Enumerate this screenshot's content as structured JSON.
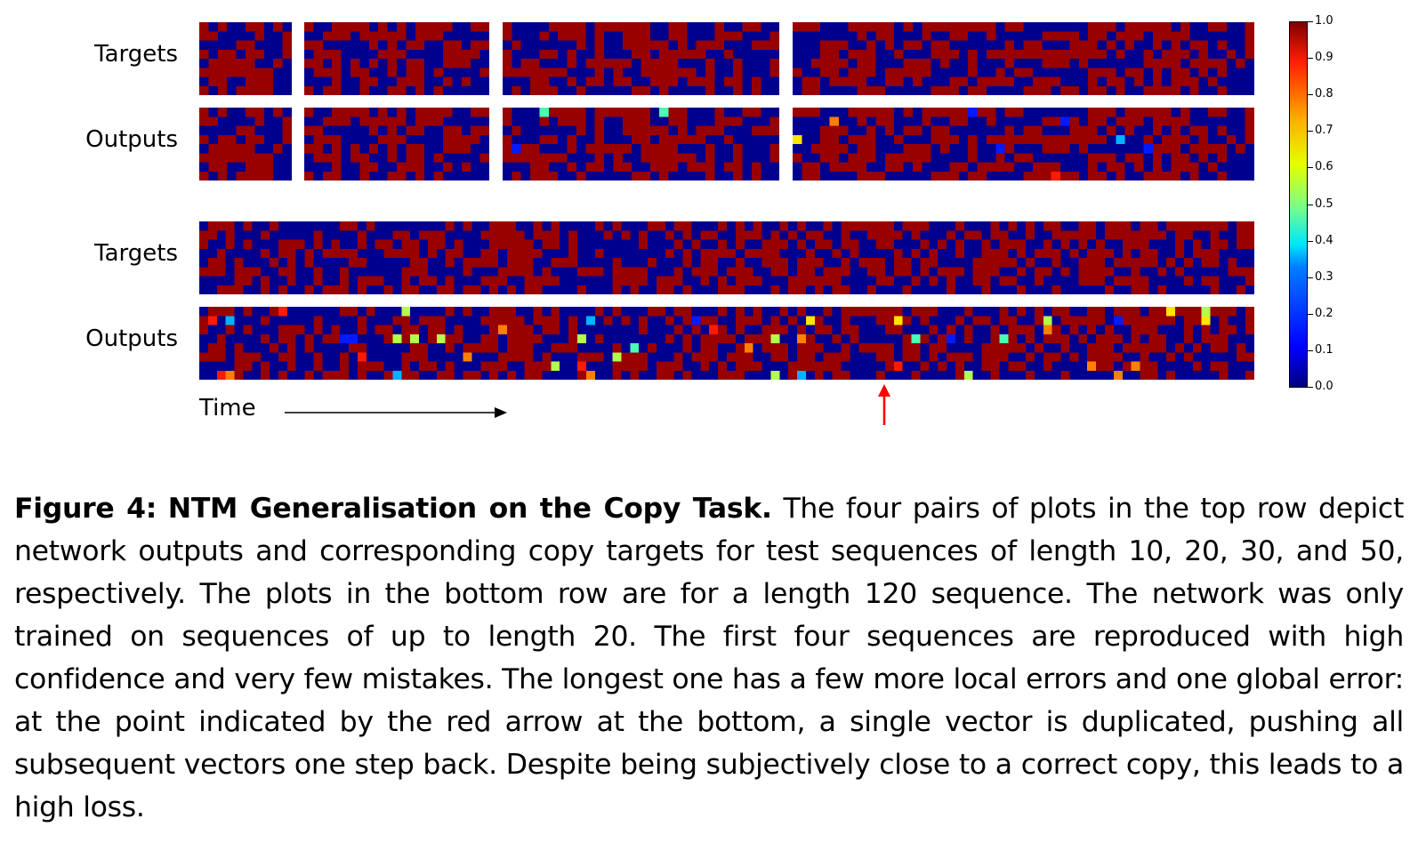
{
  "chart_data": {
    "type": "heatmap",
    "rows": [
      {
        "label": "Targets",
        "panels": [
          10,
          20,
          30,
          50
        ]
      },
      {
        "label": "Outputs",
        "panels": [
          10,
          20,
          30,
          50
        ]
      },
      {
        "label": "Targets",
        "panels": [
          120
        ]
      },
      {
        "label": "Outputs",
        "panels": [
          120
        ]
      }
    ],
    "sequence_lengths_top_row": [
      10,
      20,
      30,
      50
    ],
    "sequence_length_bottom_row": 120,
    "vector_bits": 8,
    "xlabel": "Time",
    "colorbar": {
      "range": [
        0.0,
        1.0
      ],
      "ticks": [
        "1.0",
        "0.9",
        "0.8",
        "0.7",
        "0.6",
        "0.5",
        "0.4",
        "0.3",
        "0.2",
        "0.1",
        "0.0"
      ],
      "colormap": "jet"
    },
    "annotation": "red arrow under bottom Outputs marking the duplicated vector",
    "colors": {
      "low": "#00008f",
      "high": "#990000",
      "arrow": "#ff0000"
    }
  },
  "caption": {
    "figure_label": "Figure 4:",
    "title": "NTM Generalisation on the Copy Task.",
    "body": "The four pairs of plots in the top row depict network outputs and corresponding copy targets for test sequences of length 10, 20, 30, and 50, respectively. The plots in the bottom row are for a length 120 sequence. The network was only trained on sequences of up to length 20. The first four sequences are reproduced with high confidence and very few mistakes. The longest one has a few more local errors and one global error: at the point indicated by the red arrow at the bottom, a single vector is duplicated, pushing all subsequent vectors one step back. Despite being subjectively close to a correct copy, this leads to a high loss."
  }
}
